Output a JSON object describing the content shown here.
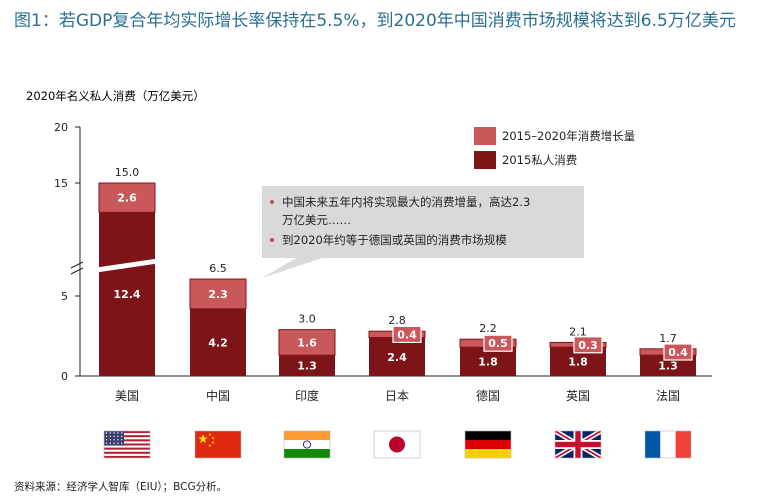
{
  "title": "图1：若GDP复合年均实际增长率保持在5.5%，到2020年中国消费市场规模将达到6.5万亿美元",
  "source": "资料来源：经济学人智库（EIU）；BCG分析。",
  "colors": {
    "base": "#7d1418",
    "increment": "#c85859",
    "axis": "#231f20",
    "title": "#2a6f93",
    "callout_bg": "#d9d9d9",
    "bullet": "#c0504d"
  },
  "callout": {
    "bullets": [
      "中国未来五年内将实现最大的消费增量，高达2.3",
      "万亿美元……",
      "到2020年约等于德国或英国的消费市场规模"
    ]
  },
  "flags": [
    "us-flag-icon",
    "cn-flag-icon",
    "in-flag-icon",
    "jp-flag-icon",
    "de-flag-icon",
    "uk-flag-icon",
    "fr-flag-icon"
  ],
  "chart_data": {
    "type": "bar",
    "stacked": true,
    "ylabel": "2020年名义私人消费（万亿美元）",
    "ylim": [
      0,
      20
    ],
    "yticks": [
      0,
      5,
      15,
      20
    ],
    "axis_break": true,
    "categories": [
      "美国",
      "中国",
      "印度",
      "日本",
      "德国",
      "英国",
      "法国"
    ],
    "series": [
      {
        "name": "2015私人消费",
        "values": [
          12.4,
          4.2,
          1.3,
          2.4,
          1.8,
          1.8,
          1.3
        ]
      },
      {
        "name": "2015–2020年消费增长量",
        "values": [
          2.6,
          2.3,
          1.6,
          0.4,
          0.5,
          0.3,
          0.4
        ]
      }
    ],
    "totals": [
      15.0,
      6.5,
      3.0,
      2.8,
      2.2,
      2.1,
      1.7
    ],
    "total_labels": [
      "15.0",
      "6.5",
      "3.0",
      "2.8",
      "2.2",
      "2.1",
      "1.7"
    ],
    "base_labels": [
      "12.4",
      "4.2",
      "1.3",
      "2.4",
      "1.8",
      "1.8",
      "1.3"
    ],
    "increment_labels": [
      "2.6",
      "2.3",
      "1.6",
      "0.4",
      "0.5",
      "0.3",
      "0.4"
    ],
    "legend_order": [
      "2015–2020年消费增长量",
      "2015私人消费"
    ],
    "legend_position": "top-right",
    "grid": false
  }
}
